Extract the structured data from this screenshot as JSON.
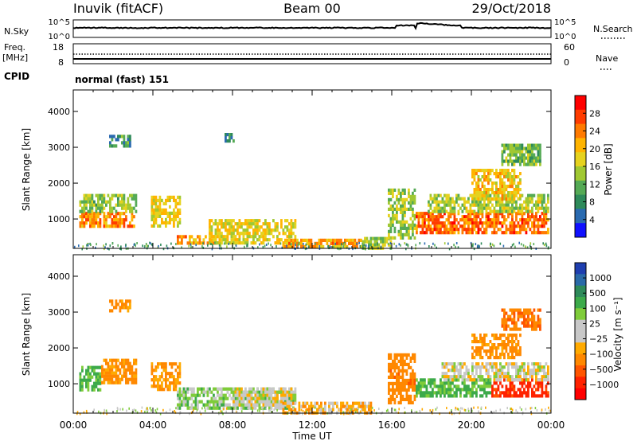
{
  "header": {
    "station": "Inuvik (fitACF)",
    "beam": "Beam 00",
    "date": "29/Oct/2018"
  },
  "panels": {
    "nsky": {
      "label": "N.Sky",
      "tick_top": "10^5",
      "tick_bottom": "10^0",
      "right_label": "N.Search",
      "right_tick_top": "10^5",
      "right_tick_bottom": "10^0"
    },
    "freq": {
      "label_line1": "Freq.",
      "label_line2": "[MHz]",
      "tick_top": "18",
      "tick_bottom": "8",
      "right_label": "Nave",
      "right_tick_top": "60",
      "right_tick_bottom": "0"
    },
    "cpid": {
      "label": "CPID",
      "value": "normal (fast) 151"
    }
  },
  "colorbars": {
    "power": {
      "label": "Power [dB]",
      "ticks": [
        "28",
        "24",
        "20",
        "16",
        "12",
        "8",
        "4"
      ],
      "colors": [
        "#ff0000",
        "#ff3c00",
        "#ff7a00",
        "#ffb400",
        "#e6d21e",
        "#a0c832",
        "#55aa55",
        "#2e8a5a",
        "#2a6ab0",
        "#1010ff"
      ]
    },
    "velocity": {
      "label": "Velocity [m s⁻¹]",
      "ticks": [
        "1000",
        "500",
        "100",
        "25",
        "−25",
        "−100",
        "−500",
        "−1000"
      ],
      "colors": [
        "#1f3fb0",
        "#2a6aa8",
        "#2e8a5a",
        "#3caa4a",
        "#7fcc3a",
        "#c8c8c8",
        "#c8c8c8",
        "#ffaa00",
        "#ff8800",
        "#ff5500",
        "#ff2200",
        "#ff0000"
      ]
    }
  },
  "chart_data": [
    {
      "type": "heatmap",
      "name": "power",
      "ylabel": "Slant Range [km]",
      "xlabel": "Time UT",
      "x_ticks": [
        "00:00",
        "04:00",
        "08:00",
        "12:00",
        "16:00",
        "20:00",
        "00:00"
      ],
      "y_ticks": [
        "1000",
        "2000",
        "3000",
        "4000"
      ],
      "xlim": [
        0,
        24
      ],
      "ylim": [
        180,
        4600
      ],
      "regions": [
        {
          "t": [
            0.3,
            3.1
          ],
          "r": [
            820,
            1200
          ],
          "v": 24
        },
        {
          "t": [
            0.3,
            3.2
          ],
          "r": [
            1200,
            1700
          ],
          "v": 13
        },
        {
          "t": [
            3.9,
            5.4
          ],
          "r": [
            850,
            1650
          ],
          "v": 18
        },
        {
          "t": [
            1.8,
            2.9
          ],
          "r": [
            3050,
            3350
          ],
          "v": 8
        },
        {
          "t": [
            7.6,
            8.2
          ],
          "r": [
            3150,
            3400
          ],
          "v": 8
        },
        {
          "t": [
            5.2,
            7.3
          ],
          "r": [
            300,
            550
          ],
          "v": 22
        },
        {
          "t": [
            6.8,
            11.2
          ],
          "r": [
            300,
            1000
          ],
          "v": 18
        },
        {
          "t": [
            10.5,
            14.5
          ],
          "r": [
            250,
            450
          ],
          "v": 22
        },
        {
          "t": [
            14.5,
            16.0
          ],
          "r": [
            230,
            500
          ],
          "v": 14
        },
        {
          "t": [
            15.8,
            17.2
          ],
          "r": [
            500,
            1850
          ],
          "v": 14
        },
        {
          "t": [
            17.2,
            23.9
          ],
          "r": [
            650,
            1200
          ],
          "v": 26
        },
        {
          "t": [
            17.8,
            23.9
          ],
          "r": [
            1200,
            1700
          ],
          "v": 15
        },
        {
          "t": [
            20.0,
            22.5
          ],
          "r": [
            1600,
            2400
          ],
          "v": 20
        },
        {
          "t": [
            21.5,
            23.5
          ],
          "r": [
            2500,
            3100
          ],
          "v": 12
        }
      ]
    },
    {
      "type": "heatmap",
      "name": "velocity",
      "ylabel": "Slant Range [km]",
      "xlabel": "Time UT",
      "x_ticks": [
        "00:00",
        "04:00",
        "08:00",
        "12:00",
        "16:00",
        "20:00",
        "00:00"
      ],
      "y_ticks": [
        "1000",
        "2000",
        "3000",
        "4000"
      ],
      "xlim": [
        0,
        24
      ],
      "ylim": [
        180,
        4600
      ],
      "regions": [
        {
          "t": [
            0.3,
            1.4
          ],
          "r": [
            800,
            1500
          ],
          "v": 120
        },
        {
          "t": [
            1.4,
            3.2
          ],
          "r": [
            1000,
            1700
          ],
          "v": -150
        },
        {
          "t": [
            3.9,
            5.4
          ],
          "r": [
            850,
            1600
          ],
          "v": -120
        },
        {
          "t": [
            1.8,
            2.9
          ],
          "r": [
            3050,
            3350
          ],
          "v": -150
        },
        {
          "t": [
            5.2,
            11.2
          ],
          "r": [
            300,
            900
          ],
          "v": 60
        },
        {
          "t": [
            8.0,
            11.0
          ],
          "r": [
            400,
            900
          ],
          "v": -10
        },
        {
          "t": [
            10.5,
            15.0
          ],
          "r": [
            230,
            500
          ],
          "v": -80
        },
        {
          "t": [
            15.8,
            17.2
          ],
          "r": [
            500,
            1850
          ],
          "v": -200
        },
        {
          "t": [
            17.2,
            21.0
          ],
          "r": [
            650,
            1150
          ],
          "v": 120
        },
        {
          "t": [
            21.0,
            23.9
          ],
          "r": [
            650,
            1150
          ],
          "v": -600
        },
        {
          "t": [
            18.5,
            23.9
          ],
          "r": [
            1150,
            1600
          ],
          "v": 0
        },
        {
          "t": [
            20.0,
            22.5
          ],
          "r": [
            1700,
            2400
          ],
          "v": -150
        },
        {
          "t": [
            21.5,
            23.5
          ],
          "r": [
            2500,
            3100
          ],
          "v": -250
        }
      ]
    }
  ]
}
